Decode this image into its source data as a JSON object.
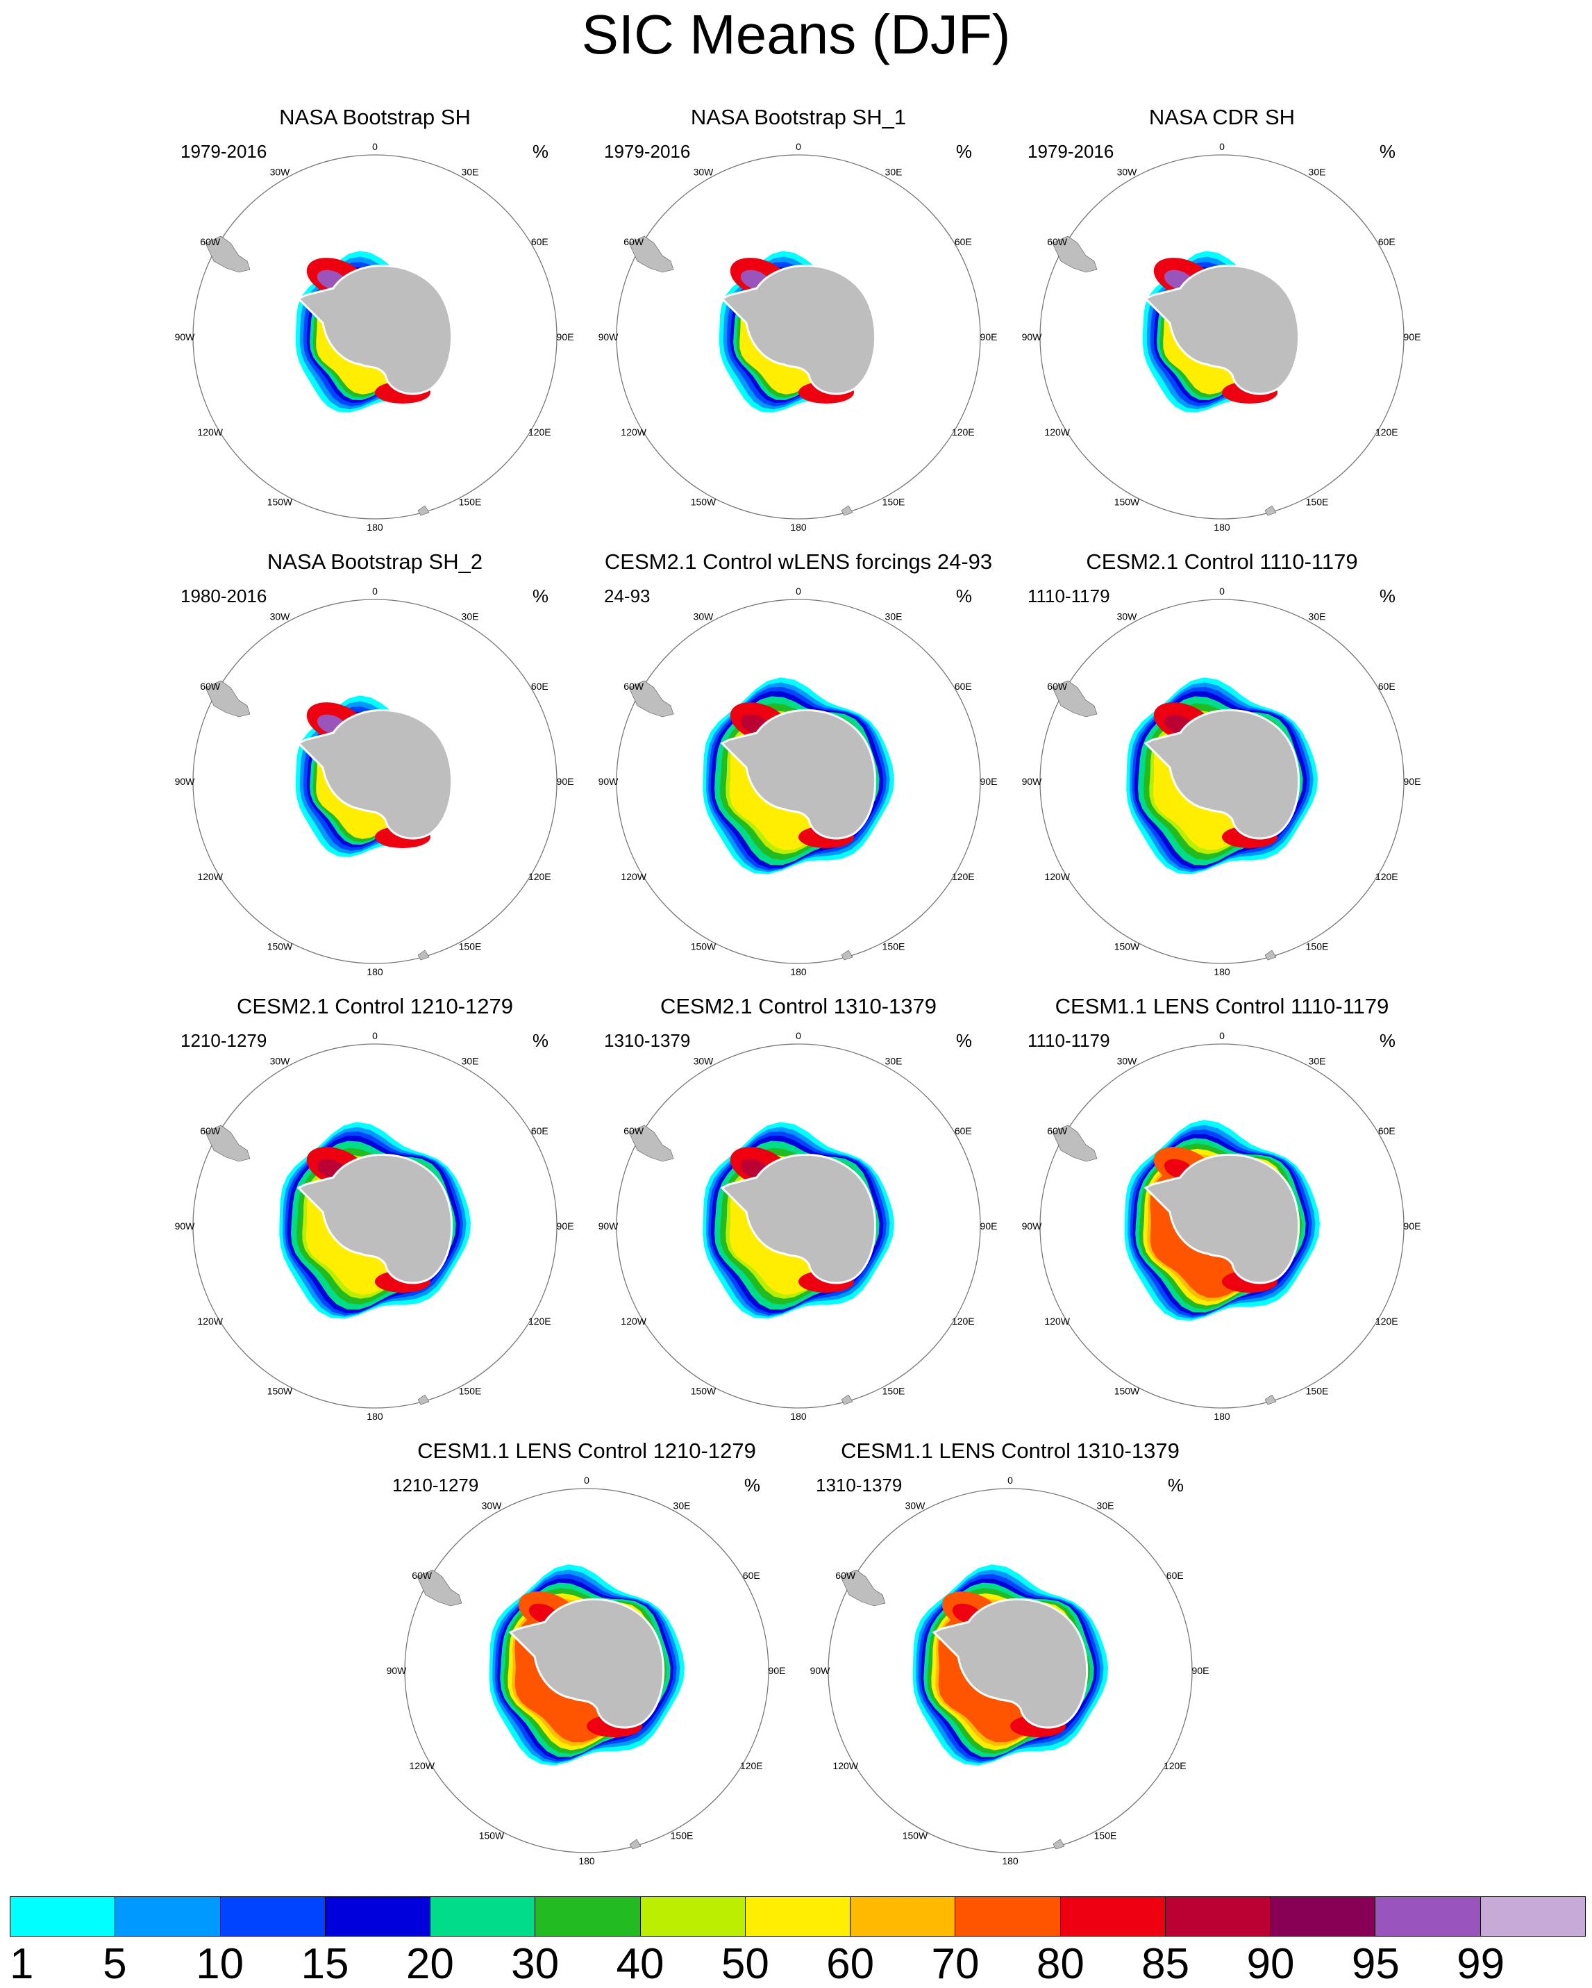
{
  "title": "SIC Means (DJF)",
  "unit_label": "%",
  "longitude_labels": {
    "deg0": "0",
    "deg30E": "30E",
    "deg60E": "60E",
    "deg90E": "90E",
    "deg120E": "120E",
    "deg150E": "150E",
    "deg180": "180",
    "deg150W": "150W",
    "deg120W": "120W",
    "deg90W": "90W",
    "deg60W": "60W",
    "deg30W": "30W"
  },
  "panels": [
    {
      "title": "NASA Bootstrap SH",
      "years": "1979-2016",
      "style": "obs"
    },
    {
      "title": "NASA Bootstrap SH_1",
      "years": "1979-2016",
      "style": "obs"
    },
    {
      "title": "NASA CDR SH",
      "years": "1979-2016",
      "style": "obs"
    },
    {
      "title": "NASA Bootstrap SH_2",
      "years": "1980-2016",
      "style": "obs"
    },
    {
      "title": "CESM2.1 Control wLENS forcings 24-93",
      "years": "24-93",
      "style": "cesm2"
    },
    {
      "title": "CESM2.1 Control 1110-1179",
      "years": "1110-1179",
      "style": "cesm2"
    },
    {
      "title": "CESM2.1 Control 1210-1279",
      "years": "1210-1279",
      "style": "cesm2"
    },
    {
      "title": "CESM2.1 Control 1310-1379",
      "years": "1310-1379",
      "style": "cesm2"
    },
    {
      "title": "CESM1.1 LENS Control 1110-1179",
      "years": "1110-1179",
      "style": "cesm1"
    },
    {
      "title": "CESM1.1 LENS Control 1210-1279",
      "years": "1210-1279",
      "style": "cesm1"
    },
    {
      "title": "CESM1.1 LENS Control 1310-1379",
      "years": "1310-1379",
      "style": "cesm1"
    }
  ],
  "colorbar": {
    "labels": [
      "1",
      "5",
      "10",
      "15",
      "20",
      "30",
      "40",
      "50",
      "60",
      "70",
      "80",
      "85",
      "90",
      "95",
      "99"
    ],
    "colors": [
      "#00ffff",
      "#0099ff",
      "#0044ff",
      "#0000dd",
      "#00dd88",
      "#22bb22",
      "#bbee00",
      "#ffee00",
      "#ffbb00",
      "#ff5500",
      "#ee0011",
      "#bb0033",
      "#880055",
      "#9955bb",
      "#c8aad8"
    ]
  },
  "land_color": "#bebebe"
}
